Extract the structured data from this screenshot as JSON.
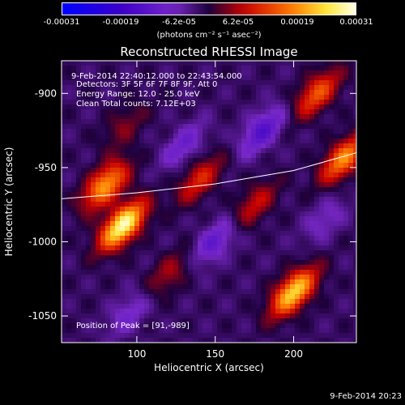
{
  "chart_data": {
    "type": "heatmap",
    "title": "Reconstructed RHESSI Image",
    "xlabel": "Heliocentric X (arcsec)",
    "ylabel": "Heliocentric Y (arcsec)",
    "xlim": [
      52,
      240
    ],
    "ylim": [
      -1068,
      -878
    ],
    "xticks": [
      100,
      150,
      200
    ],
    "yticks": [
      -900,
      -950,
      -1000,
      -1050
    ],
    "colorbar": {
      "ticks": [
        "-0.00031",
        "-0.00019",
        "-6.2e-05",
        "6.2e-05",
        "0.00019",
        "0.00031"
      ],
      "range": [
        -0.00031,
        0.00031
      ],
      "unit_label": "(photons cm⁻² s⁻¹ asec⁻²)"
    },
    "annotations": {
      "time_range": "9-Feb-2014 22:40:12.000 to 22:43:54.000",
      "detectors": "Detectors: 3F 5F 6F 7F 8F 9F, Att 0",
      "energy": "Energy Range: 12.0 - 25.0 keV",
      "clean": "Clean    Total counts: 7.12E+03",
      "peak": "Position of Peak = [91,-989]"
    },
    "features": [
      {
        "x": 91,
        "y": -989,
        "value": 0.00031
      },
      {
        "x": 80,
        "y": -962,
        "value": 0.00022
      },
      {
        "x": 200,
        "y": -1034,
        "value": 0.00026
      },
      {
        "x": 232,
        "y": -944,
        "value": 0.0002
      },
      {
        "x": 215,
        "y": -900,
        "value": 0.00016
      },
      {
        "x": 140,
        "y": -958,
        "value": 0.00012
      },
      {
        "x": 175,
        "y": -975,
        "value": 0.0001
      },
      {
        "x": 120,
        "y": -1022,
        "value": 8e-05
      },
      {
        "x": 92,
        "y": -922,
        "value": 6e-05
      },
      {
        "x": 180,
        "y": -925,
        "value": -0.00012
      },
      {
        "x": 130,
        "y": -935,
        "value": -8e-05
      },
      {
        "x": 150,
        "y": -1000,
        "value": -0.0001
      },
      {
        "x": 95,
        "y": -1048,
        "value": -7e-05
      },
      {
        "x": 220,
        "y": -985,
        "value": -6e-05
      }
    ],
    "limb": [
      [
        52,
        -971
      ],
      [
        100,
        -967
      ],
      [
        150,
        -961
      ],
      [
        200,
        -952
      ],
      [
        240,
        -940
      ]
    ]
  },
  "timestamp": "9-Feb-2014 20:23"
}
